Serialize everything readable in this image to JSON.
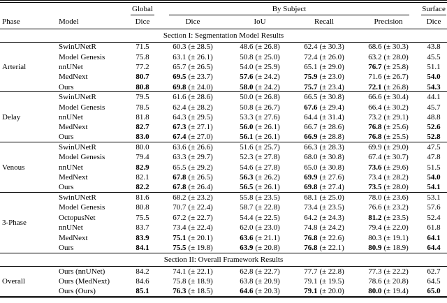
{
  "page": {
    "background": "#ffffff",
    "text_color": "#000000",
    "rule_color": "#000000"
  },
  "table": {
    "header": {
      "phase": "Phase",
      "model": "Model",
      "groups": [
        {
          "label": "Global",
          "sub": [
            "Dice"
          ]
        },
        {
          "label": "By Subject",
          "sub": [
            "Dice",
            "IoU",
            "Recall",
            "Precision"
          ]
        },
        {
          "label": "Surface",
          "sub": [
            "Dice"
          ]
        }
      ]
    },
    "sections": [
      {
        "title": "Section I: Segmentation Model Results",
        "blocks": [
          {
            "phase": "Arterial",
            "rows": [
              {
                "model": "SwinUNetR",
                "global_dice": [
                  "71.5",
                  false
                ],
                "dice": [
                  "60.3",
                  "(± 28.5)",
                  false
                ],
                "iou": [
                  "48.6",
                  "(± 26.8)",
                  false
                ],
                "recall": [
                  "62.4",
                  "(± 30.3)",
                  false
                ],
                "precision": [
                  "68.6",
                  "(± 30.3)",
                  false
                ],
                "surface_dice": [
                  "43.8",
                  false
                ]
              },
              {
                "model": "Model Genesis",
                "global_dice": [
                  "75.8",
                  false
                ],
                "dice": [
                  "63.1",
                  "(± 26.1)",
                  false
                ],
                "iou": [
                  "50.8",
                  "(± 25.0)",
                  false
                ],
                "recall": [
                  "72.4",
                  "(± 26.0)",
                  false
                ],
                "precision": [
                  "63.2",
                  "(± 28.0)",
                  false
                ],
                "surface_dice": [
                  "45.5",
                  false
                ]
              },
              {
                "model": "nnUNet",
                "global_dice": [
                  "77.2",
                  false
                ],
                "dice": [
                  "65.7",
                  "(± 26.5)",
                  false
                ],
                "iou": [
                  "54.0",
                  "(± 25.9)",
                  false
                ],
                "recall": [
                  "65.1",
                  "(± 29.0)",
                  false
                ],
                "precision": [
                  "76.7",
                  "(± 25.8)",
                  true
                ],
                "surface_dice": [
                  "51.1",
                  false
                ]
              },
              {
                "model": "MedNext",
                "global_dice": [
                  "80.7",
                  true
                ],
                "dice": [
                  "69.5",
                  "(± 23.7)",
                  true
                ],
                "iou": [
                  "57.6",
                  "(± 24.2)",
                  true
                ],
                "recall": [
                  "75.9",
                  "(± 23.0)",
                  true
                ],
                "precision": [
                  "71.6",
                  "(± 26.7)",
                  false
                ],
                "surface_dice": [
                  "54.0",
                  true
                ]
              },
              {
                "model": "Ours",
                "global_dice": [
                  "80.8",
                  true
                ],
                "dice": [
                  "69.8",
                  "(± 24.0)",
                  true
                ],
                "iou": [
                  "58.0",
                  "(± 24.2)",
                  true
                ],
                "recall": [
                  "75.7",
                  "(± 23.4)",
                  true
                ],
                "precision": [
                  "72.1",
                  "(± 26.8)",
                  true
                ],
                "surface_dice": [
                  "54.3",
                  true
                ]
              }
            ]
          },
          {
            "phase": "Delay",
            "rows": [
              {
                "model": "SwinUNetR",
                "global_dice": [
                  "79.5",
                  false
                ],
                "dice": [
                  "61.6",
                  "(± 28.6)",
                  false
                ],
                "iou": [
                  "50.0",
                  "(± 26.8)",
                  false
                ],
                "recall": [
                  "66.5",
                  "(± 30.8)",
                  false
                ],
                "precision": [
                  "66.6",
                  "(± 30.4)",
                  false
                ],
                "surface_dice": [
                  "44.1",
                  false
                ]
              },
              {
                "model": "Model Genesis",
                "global_dice": [
                  "78.5",
                  false
                ],
                "dice": [
                  "62.4",
                  "(± 28.2)",
                  false
                ],
                "iou": [
                  "50.8",
                  "(± 26.7)",
                  false
                ],
                "recall": [
                  "67.6",
                  "(± 29.4)",
                  true
                ],
                "precision": [
                  "66.4",
                  "(± 30.2)",
                  false
                ],
                "surface_dice": [
                  "45.7",
                  false
                ]
              },
              {
                "model": "nnUNet",
                "global_dice": [
                  "81.8",
                  false
                ],
                "dice": [
                  "64.3",
                  "(± 29.5)",
                  false
                ],
                "iou": [
                  "53.3",
                  "(± 27.6)",
                  false
                ],
                "recall": [
                  "64.4",
                  "(± 31.4)",
                  false
                ],
                "precision": [
                  "73.2",
                  "(± 29.1)",
                  false
                ],
                "surface_dice": [
                  "48.8",
                  false
                ]
              },
              {
                "model": "MedNext",
                "global_dice": [
                  "82.7",
                  true
                ],
                "dice": [
                  "67.3",
                  "(± 27.1)",
                  true
                ],
                "iou": [
                  "56.0",
                  "(± 26.1)",
                  true
                ],
                "recall": [
                  "66.7",
                  "(± 28.6)",
                  false
                ],
                "precision": [
                  "76.8",
                  "(± 25.6)",
                  true
                ],
                "surface_dice": [
                  "52.6",
                  true
                ]
              },
              {
                "model": "Ours",
                "global_dice": [
                  "83.0",
                  true
                ],
                "dice": [
                  "67.4",
                  "(± 27.0)",
                  true
                ],
                "iou": [
                  "56.1",
                  "(± 26.1)",
                  true
                ],
                "recall": [
                  "66.9",
                  "(± 28.8)",
                  true
                ],
                "precision": [
                  "76.8",
                  "(± 25.5)",
                  true
                ],
                "surface_dice": [
                  "52.8",
                  true
                ]
              }
            ]
          },
          {
            "phase": "Venous",
            "rows": [
              {
                "model": "SwinUNetR",
                "global_dice": [
                  "80.0",
                  false
                ],
                "dice": [
                  "63.6",
                  "(± 26.6)",
                  false
                ],
                "iou": [
                  "51.6",
                  "(± 25.7)",
                  false
                ],
                "recall": [
                  "66.3",
                  "(± 28.3)",
                  false
                ],
                "precision": [
                  "69.9",
                  "(± 29.0)",
                  false
                ],
                "surface_dice": [
                  "47.5",
                  false
                ]
              },
              {
                "model": "Model Genesis",
                "global_dice": [
                  "79.4",
                  false
                ],
                "dice": [
                  "63.3",
                  "(± 29.7)",
                  false
                ],
                "iou": [
                  "52.3",
                  "(± 27.8)",
                  false
                ],
                "recall": [
                  "68.0",
                  "(± 30.8)",
                  false
                ],
                "precision": [
                  "67.4",
                  "(± 30.7)",
                  false
                ],
                "surface_dice": [
                  "47.8",
                  false
                ]
              },
              {
                "model": "nnUNet",
                "global_dice": [
                  "82.9",
                  true
                ],
                "dice": [
                  "65.5",
                  "(± 29.2)",
                  false
                ],
                "iou": [
                  "54.6",
                  "(± 27.8)",
                  false
                ],
                "recall": [
                  "65.0",
                  "(± 30.8)",
                  false
                ],
                "precision": [
                  "73.6",
                  "(± 29.6)",
                  true
                ],
                "surface_dice": [
                  "51.5",
                  false
                ]
              },
              {
                "model": "MedNext",
                "global_dice": [
                  "82.1",
                  false
                ],
                "dice": [
                  "67.8",
                  "(± 26.5)",
                  true
                ],
                "iou": [
                  "56.3",
                  "(± 26.2)",
                  true
                ],
                "recall": [
                  "69.9",
                  "(± 27.6)",
                  true
                ],
                "precision": [
                  "73.4",
                  "(± 28.2)",
                  false
                ],
                "surface_dice": [
                  "54.0",
                  true
                ]
              },
              {
                "model": "Ours",
                "global_dice": [
                  "82.2",
                  true
                ],
                "dice": [
                  "67.8",
                  "(± 26.4)",
                  true
                ],
                "iou": [
                  "56.5",
                  "(± 26.1)",
                  true
                ],
                "recall": [
                  "69.8",
                  "(± 27.4)",
                  true
                ],
                "precision": [
                  "73.5",
                  "(± 28.0)",
                  true
                ],
                "surface_dice": [
                  "54.1",
                  true
                ]
              }
            ]
          },
          {
            "phase": "3-Phase",
            "rows": [
              {
                "model": "SwinUNetR",
                "global_dice": [
                  "81.6",
                  false
                ],
                "dice": [
                  "68.2",
                  "(± 23.2)",
                  false
                ],
                "iou": [
                  "55.8",
                  "(± 23.5)",
                  false
                ],
                "recall": [
                  "68.1",
                  "(± 25.0)",
                  false
                ],
                "precision": [
                  "78.0",
                  "(± 23.6)",
                  false
                ],
                "surface_dice": [
                  "53.1",
                  false
                ]
              },
              {
                "model": "Model Genesis",
                "global_dice": [
                  "80.8",
                  false
                ],
                "dice": [
                  "70.7",
                  "(± 22.4)",
                  false
                ],
                "iou": [
                  "58.7",
                  "(± 22.8)",
                  false
                ],
                "recall": [
                  "73.4",
                  "(± 23.5)",
                  false
                ],
                "precision": [
                  "76.6",
                  "(± 23.2)",
                  false
                ],
                "surface_dice": [
                  "57.6",
                  false
                ]
              },
              {
                "model": "OctopusNet",
                "global_dice": [
                  "75.5",
                  false
                ],
                "dice": [
                  "67.2",
                  "(± 22.7)",
                  false
                ],
                "iou": [
                  "54.4",
                  "(± 22.5)",
                  false
                ],
                "recall": [
                  "64.2",
                  "(± 24.3)",
                  false
                ],
                "precision": [
                  "81.2",
                  "(± 23.5)",
                  true
                ],
                "surface_dice": [
                  "52.4",
                  false
                ]
              },
              {
                "model": "nnUNet",
                "global_dice": [
                  "83.7",
                  false
                ],
                "dice": [
                  "73.4",
                  "(± 22.4)",
                  false
                ],
                "iou": [
                  "62.0",
                  "(± 23.0)",
                  false
                ],
                "recall": [
                  "74.8",
                  "(± 24.2)",
                  false
                ],
                "precision": [
                  "79.4",
                  "(± 22.0)",
                  false
                ],
                "surface_dice": [
                  "61.8",
                  false
                ]
              },
              {
                "model": "MedNext",
                "global_dice": [
                  "83.9",
                  true
                ],
                "dice": [
                  "75.1",
                  "(± 20.1)",
                  true
                ],
                "iou": [
                  "63.6",
                  "(± 21.1)",
                  true
                ],
                "recall": [
                  "76.8",
                  "(± 22.6)",
                  true
                ],
                "precision": [
                  "80.3",
                  "(± 19.1)",
                  false
                ],
                "surface_dice": [
                  "64.1",
                  true
                ]
              },
              {
                "model": "Ours",
                "global_dice": [
                  "84.1",
                  true
                ],
                "dice": [
                  "75.5",
                  "(± 19.8)",
                  true
                ],
                "iou": [
                  "63.9",
                  "(± 20.8)",
                  true
                ],
                "recall": [
                  "76.8",
                  "(± 22.1)",
                  true
                ],
                "precision": [
                  "80.9",
                  "(± 18.9)",
                  true
                ],
                "surface_dice": [
                  "64.4",
                  true
                ]
              }
            ]
          }
        ]
      },
      {
        "title": "Section II: Overall Framework Results",
        "blocks": [
          {
            "phase": "Overall",
            "rows": [
              {
                "model": "Ours (nnUNet)",
                "global_dice": [
                  "84.2",
                  false
                ],
                "dice": [
                  "74.1",
                  "(± 22.1)",
                  false
                ],
                "iou": [
                  "62.8",
                  "(± 22.7)",
                  false
                ],
                "recall": [
                  "77.7",
                  "(± 22.8)",
                  false
                ],
                "precision": [
                  "77.3",
                  "(± 22.2)",
                  false
                ],
                "surface_dice": [
                  "62.7",
                  false
                ]
              },
              {
                "model": "Ours (MedNext)",
                "global_dice": [
                  "84.6",
                  false
                ],
                "dice": [
                  "75.8",
                  "(± 18.9)",
                  false
                ],
                "iou": [
                  "63.8",
                  "(± 20.9)",
                  false
                ],
                "recall": [
                  "79.1",
                  "(± 19.5)",
                  false
                ],
                "precision": [
                  "78.6",
                  "(± 20.8)",
                  false
                ],
                "surface_dice": [
                  "64.5",
                  false
                ]
              },
              {
                "model": "Ours (Ours)",
                "global_dice": [
                  "85.1",
                  true
                ],
                "dice": [
                  "76.3",
                  "(± 18.5)",
                  true
                ],
                "iou": [
                  "64.6",
                  "(± 20.3)",
                  true
                ],
                "recall": [
                  "79.1",
                  "(± 20.0)",
                  true
                ],
                "precision": [
                  "80.0",
                  "(± 19.4)",
                  true
                ],
                "surface_dice": [
                  "65.0",
                  true
                ]
              }
            ]
          }
        ]
      }
    ]
  }
}
